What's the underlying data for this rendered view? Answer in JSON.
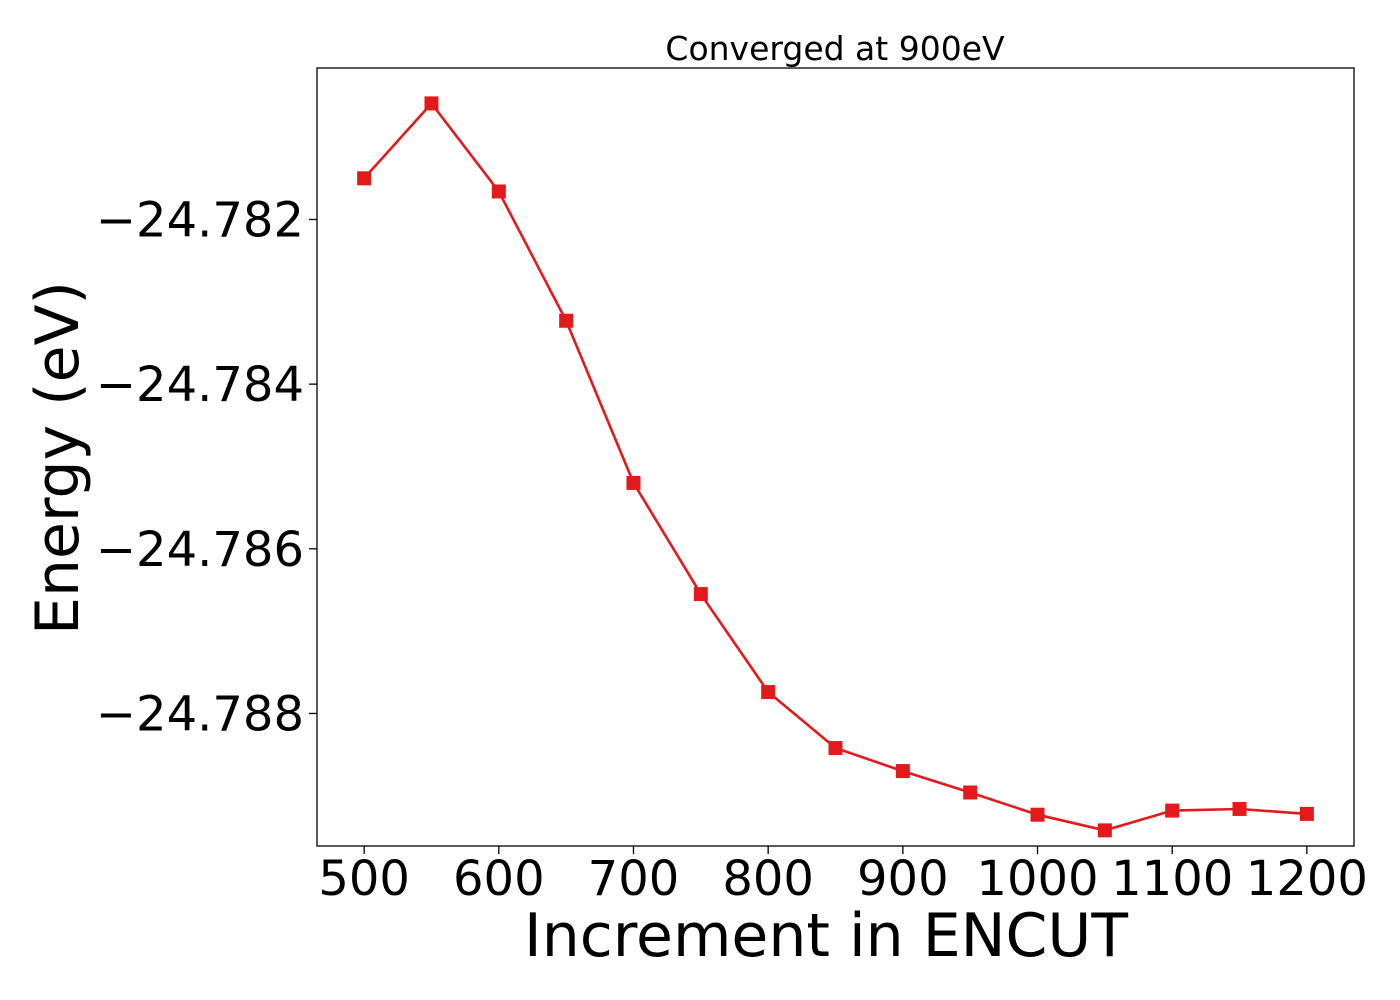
{
  "chart_data": {
    "type": "line",
    "title": "Converged at 900eV",
    "xlabel": "Increment in ENCUT",
    "ylabel": "Energy (eV)",
    "x": [
      500,
      550,
      600,
      650,
      700,
      750,
      800,
      850,
      900,
      950,
      1000,
      1050,
      1100,
      1150,
      1200
    ],
    "series": [
      {
        "values": [
          -24.7815,
          -24.78059,
          -24.78166,
          -24.78323,
          -24.7852,
          -24.78655,
          -24.78774,
          -24.78842,
          -24.7887,
          -24.78896,
          -24.78923,
          -24.78942,
          -24.78918,
          -24.78916,
          -24.78922
        ],
        "color": "#e31a1c",
        "marker": "square"
      }
    ],
    "xticks": [
      500,
      600,
      700,
      800,
      900,
      1000,
      1100,
      1200
    ],
    "xtick_labels": [
      "500",
      "600",
      "700",
      "800",
      "900",
      "1000",
      "1100",
      "1200"
    ],
    "yticks": [
      -24.782,
      -24.784,
      -24.786,
      -24.788
    ],
    "ytick_labels": [
      "−24.782",
      "−24.784",
      "−24.786",
      "−24.788"
    ],
    "xlim": [
      465,
      1235
    ],
    "ylim": [
      -24.78961,
      -24.78016
    ],
    "grid": false,
    "legend": false
  }
}
